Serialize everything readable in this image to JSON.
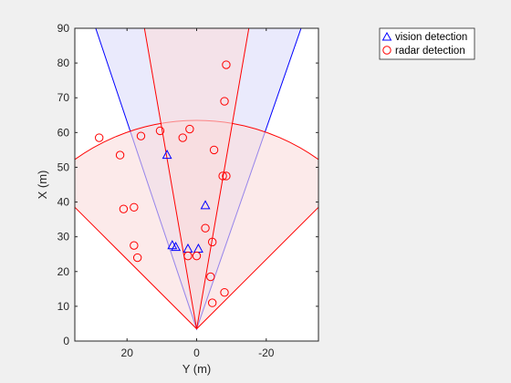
{
  "chart_data": {
    "type": "scatter",
    "title": "",
    "xlabel": "Y (m)",
    "ylabel": "X (m)",
    "xlim": [
      35,
      -35
    ],
    "ylim": [
      0,
      90
    ],
    "x_direction": "reversed",
    "x_ticks": [
      20,
      0,
      -20
    ],
    "y_ticks": [
      0,
      10,
      20,
      30,
      40,
      50,
      60,
      70,
      80,
      90
    ],
    "grid": false,
    "legend_position": "top-right outside",
    "sensor_origin": {
      "y": 0,
      "x": 3.5
    },
    "coverage_areas": [
      {
        "name": "vision coverage",
        "color": "#0000ff",
        "fill": "#dcdcfa",
        "apex": [
          0,
          3.5
        ],
        "left_edge_top": [
          29,
          90
        ],
        "right_edge_top": [
          -30,
          90
        ],
        "range": null
      },
      {
        "name": "radar wide coverage",
        "color": "#ff0000",
        "fill": "#fadcdc",
        "apex": [
          0,
          3.5
        ],
        "half_angle_deg": 45,
        "range": 60
      },
      {
        "name": "radar narrow coverage",
        "color": "#ff0000",
        "fill": "#fadcdc",
        "apex": [
          0,
          3.5
        ],
        "left_edge_top": [
          15,
          90
        ],
        "right_edge_top": [
          -15,
          90
        ],
        "range": null
      }
    ],
    "series": [
      {
        "name": "vision detection",
        "marker": "triangle",
        "color": "#0000ff",
        "points": [
          [
            8.5,
            53.5
          ],
          [
            -2.5,
            39
          ],
          [
            7,
            27.5
          ],
          [
            6,
            27
          ],
          [
            2.5,
            26.5
          ],
          [
            -0.5,
            26.5
          ]
        ]
      },
      {
        "name": "radar detection",
        "marker": "circle",
        "color": "#ff0000",
        "points": [
          [
            -8.5,
            79.5
          ],
          [
            -8,
            69
          ],
          [
            28,
            58.5
          ],
          [
            10.5,
            60.5
          ],
          [
            4,
            58.5
          ],
          [
            2,
            61
          ],
          [
            16,
            59
          ],
          [
            22,
            53.5
          ],
          [
            -5,
            55
          ],
          [
            -7.5,
            47.5
          ],
          [
            -8.5,
            47.5
          ],
          [
            18,
            38.5
          ],
          [
            21,
            38
          ],
          [
            -2.5,
            32.5
          ],
          [
            -4.5,
            28.5
          ],
          [
            18,
            27.5
          ],
          [
            17,
            24
          ],
          [
            2.5,
            24.5
          ],
          [
            0,
            24.5
          ],
          [
            -4,
            18.5
          ],
          [
            -4.5,
            11
          ],
          [
            -8,
            14
          ]
        ]
      }
    ]
  },
  "legend": {
    "vision_label": "vision detection",
    "radar_label": "radar detection"
  }
}
